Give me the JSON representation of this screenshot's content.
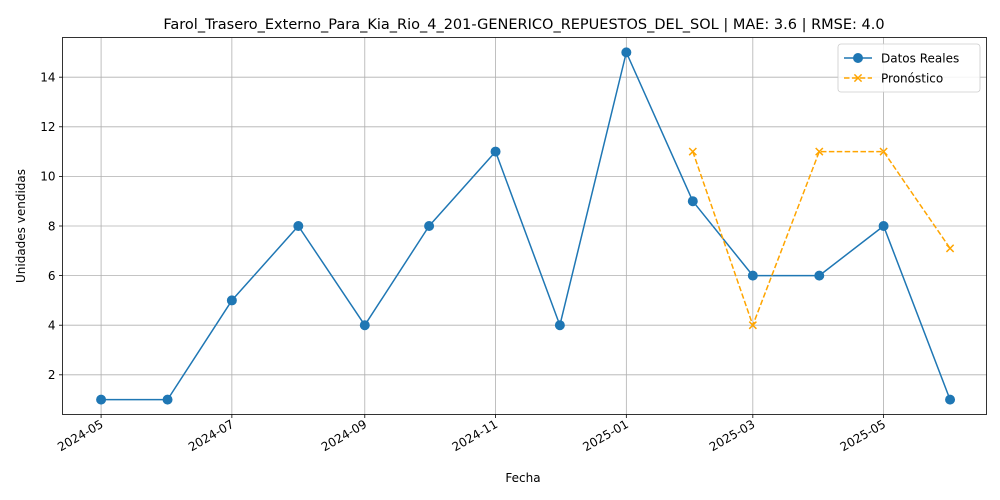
{
  "chart_data": {
    "type": "line",
    "title": "Farol_Trasero_Externo_Para_Kia_Rio_4_201-GENERICO_REPUESTOS_DEL_SOL | MAE: 3.6 | RMSE: 4.0",
    "xlabel": "Fecha",
    "ylabel": "Unidades vendidas",
    "grid": true,
    "legend_position": "top-right",
    "x_ticks": [
      "2024-05",
      "2024-07",
      "2024-09",
      "2024-11",
      "2025-01",
      "2025-03",
      "2025-05"
    ],
    "y_ticks": [
      2,
      4,
      6,
      8,
      10,
      12,
      14
    ],
    "ylim": [
      0.4,
      15.6
    ],
    "xlim": [
      "2024-04-13",
      "2025-06-18"
    ],
    "series": [
      {
        "name": "Datos Reales",
        "color": "#1f77b4",
        "marker": "circle",
        "linestyle": "solid",
        "points": [
          {
            "x": "2024-05-01",
            "y": 1
          },
          {
            "x": "2024-06-01",
            "y": 1
          },
          {
            "x": "2024-07-01",
            "y": 5
          },
          {
            "x": "2024-08-01",
            "y": 8
          },
          {
            "x": "2024-09-01",
            "y": 4
          },
          {
            "x": "2024-10-01",
            "y": 8
          },
          {
            "x": "2024-11-01",
            "y": 11
          },
          {
            "x": "2024-12-01",
            "y": 4
          },
          {
            "x": "2025-01-01",
            "y": 15
          },
          {
            "x": "2025-02-01",
            "y": 9
          },
          {
            "x": "2025-03-01",
            "y": 6
          },
          {
            "x": "2025-04-01",
            "y": 6
          },
          {
            "x": "2025-05-01",
            "y": 8
          },
          {
            "x": "2025-06-01",
            "y": 1
          }
        ]
      },
      {
        "name": "Pronóstico",
        "color": "#ffa500",
        "marker": "x",
        "linestyle": "dashed",
        "points": [
          {
            "x": "2025-02-01",
            "y": 11
          },
          {
            "x": "2025-03-01",
            "y": 4
          },
          {
            "x": "2025-04-01",
            "y": 11
          },
          {
            "x": "2025-05-01",
            "y": 11
          },
          {
            "x": "2025-06-01",
            "y": 7.1
          }
        ]
      }
    ]
  }
}
